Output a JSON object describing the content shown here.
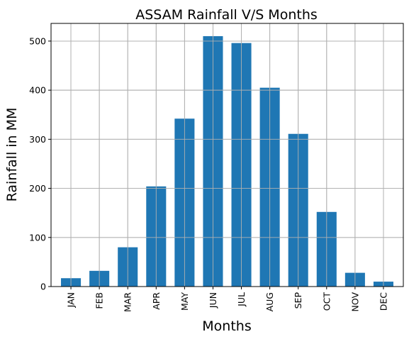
{
  "chart_data": {
    "type": "bar",
    "title": "ASSAM Rainfall V/S Months",
    "xlabel": "Months",
    "ylabel": "Rainfall in MM",
    "categories": [
      "JAN",
      "FEB",
      "MAR",
      "APR",
      "MAY",
      "JUN",
      "JUL",
      "AUG",
      "SEP",
      "OCT",
      "NOV",
      "DEC"
    ],
    "values": [
      17,
      32,
      80,
      204,
      342,
      510,
      496,
      405,
      311,
      152,
      28,
      10
    ],
    "ylim": [
      0,
      536
    ],
    "yticks": [
      0,
      100,
      200,
      300,
      400,
      500
    ],
    "grid": true,
    "bar_color": "#1f77b4",
    "grid_color": "#b0b0b0"
  }
}
